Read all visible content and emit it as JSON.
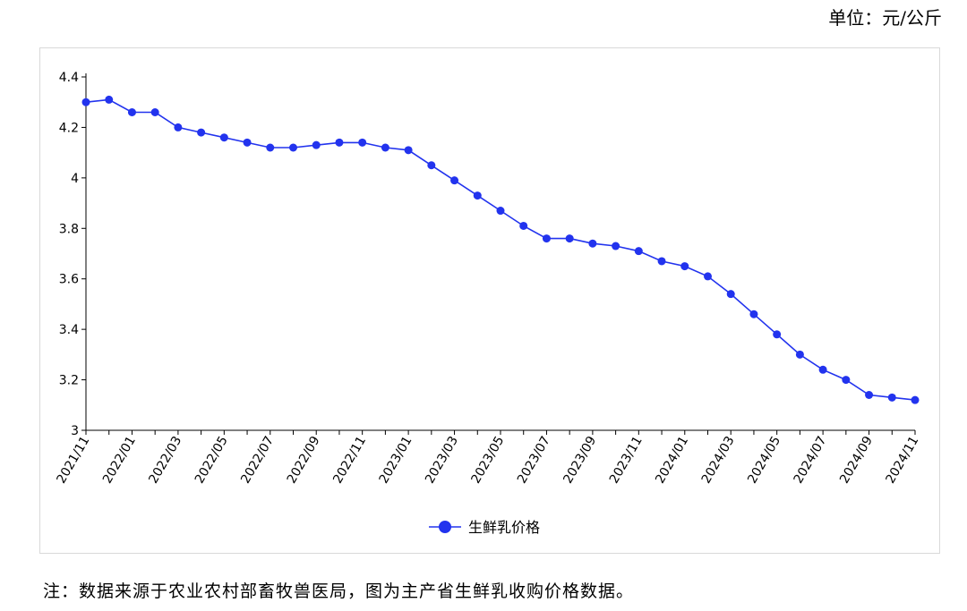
{
  "unit_label": "单位：元/公斤",
  "note": "注：数据来源于农业农村部畜牧兽医局，图为主产省生鲜乳收购价格数据。",
  "chart_data": {
    "type": "line",
    "x": [
      "2021/11",
      "2021/12",
      "2022/01",
      "2022/02",
      "2022/03",
      "2022/04",
      "2022/05",
      "2022/06",
      "2022/07",
      "2022/08",
      "2022/09",
      "2022/10",
      "2022/11",
      "2022/12",
      "2023/01",
      "2023/02",
      "2023/03",
      "2023/04",
      "2023/05",
      "2023/06",
      "2023/07",
      "2023/08",
      "2023/09",
      "2023/10",
      "2023/11",
      "2023/12",
      "2024/01",
      "2024/02",
      "2024/03",
      "2024/04",
      "2024/05",
      "2024/06",
      "2024/07",
      "2024/08",
      "2024/09",
      "2024/10",
      "2024/11"
    ],
    "x_tick_labels": [
      "2021/11",
      "2022/01",
      "2022/03",
      "2022/05",
      "2022/07",
      "2022/09",
      "2022/11",
      "2023/01",
      "2023/03",
      "2023/05",
      "2023/07",
      "2023/09",
      "2023/11",
      "2024/01",
      "2024/03",
      "2024/05",
      "2024/07",
      "2024/09",
      "2024/11"
    ],
    "series": [
      {
        "name": "生鲜乳价格",
        "color": "#2233ee",
        "values": [
          4.3,
          4.31,
          4.26,
          4.26,
          4.2,
          4.18,
          4.16,
          4.14,
          4.12,
          4.12,
          4.13,
          4.14,
          4.14,
          4.12,
          4.11,
          4.05,
          3.99,
          3.93,
          3.87,
          3.81,
          3.76,
          3.76,
          3.74,
          3.73,
          3.71,
          3.67,
          3.65,
          3.61,
          3.54,
          3.46,
          3.38,
          3.3,
          3.24,
          3.2,
          3.14,
          3.13,
          3.12
        ]
      }
    ],
    "y_ticks": [
      "3",
      "3.2",
      "3.4",
      "3.6",
      "3.8",
      "4",
      "4.2",
      "4.4"
    ],
    "ylim": [
      3,
      4.4
    ],
    "grid": false,
    "legend_position": "bottom"
  }
}
